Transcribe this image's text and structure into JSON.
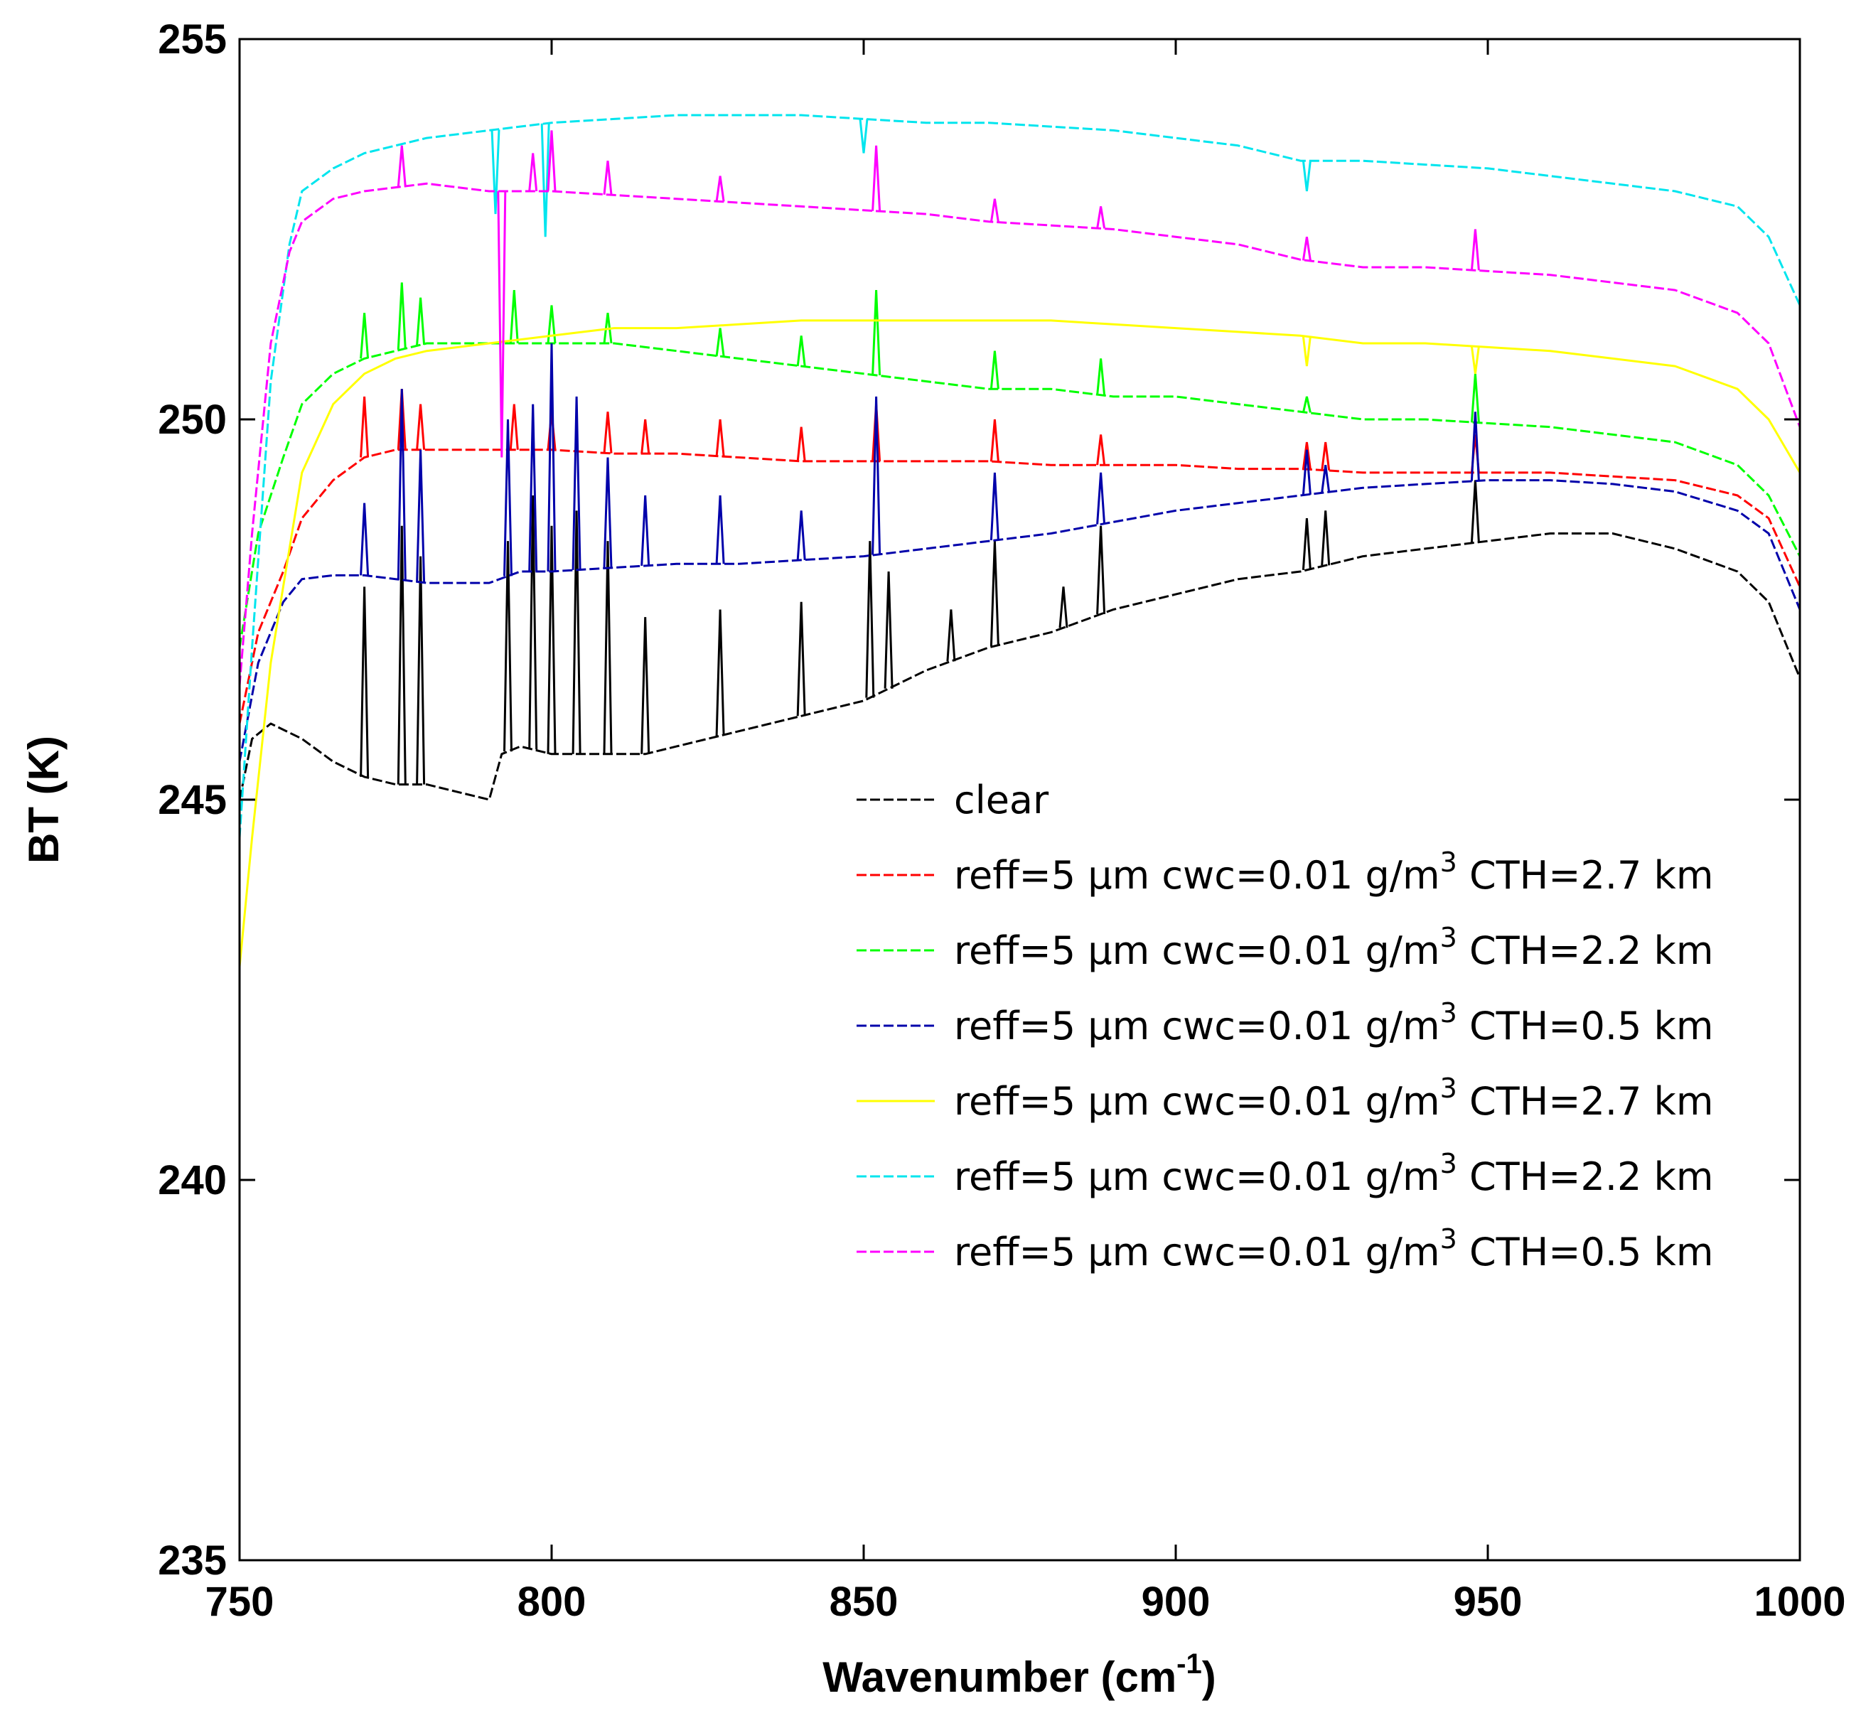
{
  "chart_data": {
    "type": "line",
    "title": "",
    "xlabel": "Wavenumber (cm",
    "xlabel_sup": "-1",
    "xlabel_close": ")",
    "ylabel": "BT (K)",
    "xlim": [
      750,
      1000
    ],
    "ylim": [
      235,
      255
    ],
    "xticks": [
      750,
      800,
      850,
      900,
      950,
      1000
    ],
    "yticks": [
      235,
      240,
      245,
      250,
      255
    ],
    "grid": false,
    "legend_position": "center-right",
    "series": [
      {
        "name": "clear",
        "legend": {
          "pre": "clear",
          "sup": "",
          "post": ""
        },
        "color": "#000000",
        "dash": "dashed",
        "x": [
          750,
          752,
          755,
          760,
          765,
          770,
          775,
          780,
          785,
          790,
          792,
          795,
          800,
          805,
          810,
          815,
          820,
          830,
          840,
          850,
          855,
          860,
          870,
          880,
          890,
          900,
          910,
          920,
          925,
          930,
          940,
          950,
          960,
          970,
          980,
          990,
          995,
          1000
        ],
        "y": [
          245.0,
          245.8,
          246.0,
          245.8,
          245.5,
          245.3,
          245.2,
          245.2,
          245.1,
          245.0,
          245.6,
          245.7,
          245.6,
          245.6,
          245.6,
          245.6,
          245.7,
          245.9,
          246.1,
          246.3,
          246.5,
          246.7,
          247.0,
          247.2,
          247.5,
          247.7,
          247.9,
          248.0,
          248.1,
          248.2,
          248.3,
          248.4,
          248.5,
          248.5,
          248.3,
          248.0,
          247.6,
          246.6
        ],
        "spikes": [
          [
            770,
            247.8
          ],
          [
            776,
            248.6
          ],
          [
            779,
            248.2
          ],
          [
            793,
            248.4
          ],
          [
            797,
            249.0
          ],
          [
            800,
            248.6
          ],
          [
            804,
            248.8
          ],
          [
            809,
            248.4
          ],
          [
            815,
            247.4
          ],
          [
            827,
            247.5
          ],
          [
            840,
            247.6
          ],
          [
            851,
            248.4
          ],
          [
            854,
            248.0
          ],
          [
            864,
            247.5
          ],
          [
            871,
            248.4
          ],
          [
            882,
            247.8
          ],
          [
            888,
            248.6
          ],
          [
            921,
            248.7
          ],
          [
            924,
            248.8
          ],
          [
            948,
            249.2
          ]
        ]
      },
      {
        "name": "reff=5 µm cwc=0.01 g/m3 CTH=2.7 km (red)",
        "legend": {
          "pre": "reff=5 µm cwc=0.01 g/m",
          "sup": "3",
          "post": "  CTH=2.7 km"
        },
        "color": "#ff0000",
        "dash": "dashed",
        "x": [
          750,
          753,
          757,
          760,
          765,
          770,
          775,
          780,
          785,
          790,
          795,
          800,
          810,
          820,
          830,
          840,
          850,
          860,
          870,
          880,
          890,
          900,
          910,
          920,
          930,
          940,
          950,
          960,
          970,
          980,
          990,
          995,
          1000
        ],
        "y": [
          246.0,
          247.2,
          248.0,
          248.7,
          249.2,
          249.5,
          249.6,
          249.6,
          249.6,
          249.6,
          249.6,
          249.6,
          249.55,
          249.55,
          249.5,
          249.45,
          249.45,
          249.45,
          249.45,
          249.4,
          249.4,
          249.4,
          249.35,
          249.35,
          249.3,
          249.3,
          249.3,
          249.3,
          249.25,
          249.2,
          249.0,
          248.7,
          247.8
        ],
        "spikes": [
          [
            770,
            250.3
          ],
          [
            776,
            250.4
          ],
          [
            779,
            250.2
          ],
          [
            794,
            250.2
          ],
          [
            800,
            250.1
          ],
          [
            809,
            250.1
          ],
          [
            815,
            250.0
          ],
          [
            827,
            250.0
          ],
          [
            840,
            249.9
          ],
          [
            852,
            250.2
          ],
          [
            871,
            250.0
          ],
          [
            888,
            249.8
          ],
          [
            921,
            249.7
          ],
          [
            924,
            249.7
          ],
          [
            948,
            249.8
          ]
        ]
      },
      {
        "name": "reff=5 µm cwc=0.01 g/m3 CTH=2.2 km (green)",
        "legend": {
          "pre": "reff=5 µm cwc=0.01 g/m",
          "sup": "3",
          "post": "  CTH=2.2 km"
        },
        "color": "#00ff00",
        "dash": "dashed",
        "x": [
          750,
          753,
          757,
          760,
          765,
          770,
          775,
          780,
          790,
          800,
          810,
          820,
          830,
          840,
          850,
          860,
          870,
          880,
          890,
          900,
          910,
          920,
          930,
          940,
          950,
          960,
          970,
          980,
          990,
          995,
          1000
        ],
        "y": [
          247.0,
          248.5,
          249.5,
          250.2,
          250.6,
          250.8,
          250.9,
          251.0,
          251.0,
          251.0,
          251.0,
          250.9,
          250.8,
          250.7,
          250.6,
          250.5,
          250.4,
          250.4,
          250.3,
          250.3,
          250.2,
          250.1,
          250.0,
          250.0,
          249.95,
          249.9,
          249.8,
          249.7,
          249.4,
          249.0,
          248.2
        ],
        "spikes": [
          [
            770,
            251.4
          ],
          [
            776,
            251.8
          ],
          [
            779,
            251.6
          ],
          [
            794,
            251.7
          ],
          [
            800,
            251.5
          ],
          [
            809,
            251.4
          ],
          [
            827,
            251.2
          ],
          [
            840,
            251.1
          ],
          [
            852,
            251.7
          ],
          [
            871,
            250.9
          ],
          [
            888,
            250.8
          ],
          [
            921,
            250.3
          ],
          [
            948,
            250.6
          ]
        ]
      },
      {
        "name": "reff=5 µm cwc=0.01 g/m3 CTH=0.5 km (blue)",
        "legend": {
          "pre": "reff=5 µm cwc=0.01 g/m",
          "sup": "3",
          "post": "  CTH=0.5 km"
        },
        "color": "#0000aa",
        "dash": "dashed",
        "x": [
          750,
          753,
          757,
          760,
          765,
          770,
          775,
          780,
          785,
          790,
          795,
          800,
          810,
          820,
          830,
          840,
          850,
          860,
          870,
          880,
          890,
          900,
          910,
          920,
          930,
          940,
          950,
          960,
          970,
          980,
          990,
          995,
          1000
        ],
        "y": [
          245.5,
          246.8,
          247.6,
          247.9,
          247.95,
          247.95,
          247.9,
          247.85,
          247.85,
          247.85,
          248.0,
          248.0,
          248.05,
          248.1,
          248.1,
          248.15,
          248.2,
          248.3,
          248.4,
          248.5,
          248.65,
          248.8,
          248.9,
          249.0,
          249.1,
          249.15,
          249.2,
          249.2,
          249.15,
          249.05,
          248.8,
          248.5,
          247.5
        ],
        "spikes": [
          [
            770,
            248.9
          ],
          [
            776,
            250.4
          ],
          [
            779,
            249.6
          ],
          [
            793,
            250.0
          ],
          [
            797,
            250.2
          ],
          [
            800,
            251.0
          ],
          [
            804,
            250.3
          ],
          [
            809,
            249.5
          ],
          [
            815,
            249.0
          ],
          [
            827,
            249.0
          ],
          [
            840,
            248.8
          ],
          [
            852,
            250.3
          ],
          [
            871,
            249.3
          ],
          [
            888,
            249.3
          ],
          [
            921,
            249.6
          ],
          [
            924,
            249.4
          ],
          [
            948,
            250.1
          ]
        ]
      },
      {
        "name": "reff=5 µm cwc=0.01 g/m3 CTH=2.7 km (yellow)",
        "legend": {
          "pre": "reff=5 µm cwc=0.01 g/m",
          "sup": "3",
          "post": "  CTH=2.7 km"
        },
        "color": "#ffff00",
        "dash": "solid",
        "x": [
          750,
          752,
          755,
          758,
          760,
          765,
          770,
          775,
          780,
          790,
          800,
          810,
          820,
          830,
          840,
          850,
          860,
          870,
          880,
          890,
          900,
          910,
          920,
          930,
          940,
          950,
          960,
          970,
          980,
          990,
          995,
          1000
        ],
        "y": [
          242.8,
          244.5,
          246.8,
          248.3,
          249.3,
          250.2,
          250.6,
          250.8,
          250.9,
          251.0,
          251.1,
          251.2,
          251.2,
          251.25,
          251.3,
          251.3,
          251.3,
          251.3,
          251.3,
          251.25,
          251.2,
          251.15,
          251.1,
          251.0,
          251.0,
          250.95,
          250.9,
          250.8,
          250.7,
          250.4,
          250.0,
          249.3
        ],
        "spikes": [
          [
            921,
            250.7
          ],
          [
            948,
            250.6
          ]
        ]
      },
      {
        "name": "reff=5 µm cwc=0.01 g/m3 CTH=2.2 km (cyan)",
        "legend": {
          "pre": "reff=5 µm cwc=0.01 g/m",
          "sup": "3",
          "post": "  CTH=2.2 km"
        },
        "color": "#00e5ee",
        "dash": "dashed",
        "x": [
          750,
          752,
          755,
          758,
          760,
          765,
          770,
          775,
          780,
          790,
          800,
          810,
          820,
          830,
          840,
          850,
          860,
          870,
          880,
          890,
          900,
          910,
          920,
          930,
          940,
          950,
          960,
          970,
          980,
          990,
          995,
          1000
        ],
        "y": [
          244.5,
          247.0,
          250.5,
          252.3,
          253.0,
          253.3,
          253.5,
          253.6,
          253.7,
          253.8,
          253.9,
          253.95,
          254.0,
          254.0,
          254.0,
          253.95,
          253.9,
          253.9,
          253.85,
          253.8,
          253.7,
          253.6,
          253.4,
          253.4,
          253.35,
          253.3,
          253.2,
          253.1,
          253.0,
          252.8,
          252.4,
          251.5
        ],
        "spikes": [
          [
            791,
            252.7
          ],
          [
            799,
            252.4
          ],
          [
            850,
            253.5
          ],
          [
            921,
            253.0
          ]
        ]
      },
      {
        "name": "reff=5 µm cwc=0.01 g/m3 CTH=0.5 km (magenta)",
        "legend": {
          "pre": "reff=5 µm cwc=0.01 g/m",
          "sup": "3",
          "post": "  CTH=0.5 km"
        },
        "color": "#ff00ff",
        "dash": "dashed",
        "x": [
          750,
          752,
          755,
          758,
          760,
          765,
          770,
          775,
          780,
          790,
          800,
          810,
          820,
          830,
          840,
          850,
          860,
          870,
          880,
          890,
          900,
          910,
          920,
          930,
          940,
          950,
          960,
          970,
          980,
          990,
          995,
          1000
        ],
        "y": [
          246.5,
          248.5,
          251.0,
          252.2,
          252.6,
          252.9,
          253.0,
          253.05,
          253.1,
          253.0,
          253.0,
          252.95,
          252.9,
          252.85,
          252.8,
          252.75,
          252.7,
          252.6,
          252.55,
          252.5,
          252.4,
          252.3,
          252.1,
          252.0,
          252.0,
          251.95,
          251.9,
          251.8,
          251.7,
          251.4,
          251.0,
          249.9
        ],
        "spikes": [
          [
            776,
            253.6
          ],
          [
            792,
            249.5
          ],
          [
            797,
            253.5
          ],
          [
            800,
            253.8
          ],
          [
            809,
            253.4
          ],
          [
            827,
            253.2
          ],
          [
            852,
            253.6
          ],
          [
            871,
            252.9
          ],
          [
            888,
            252.8
          ],
          [
            921,
            252.4
          ],
          [
            948,
            252.5
          ]
        ]
      }
    ]
  }
}
